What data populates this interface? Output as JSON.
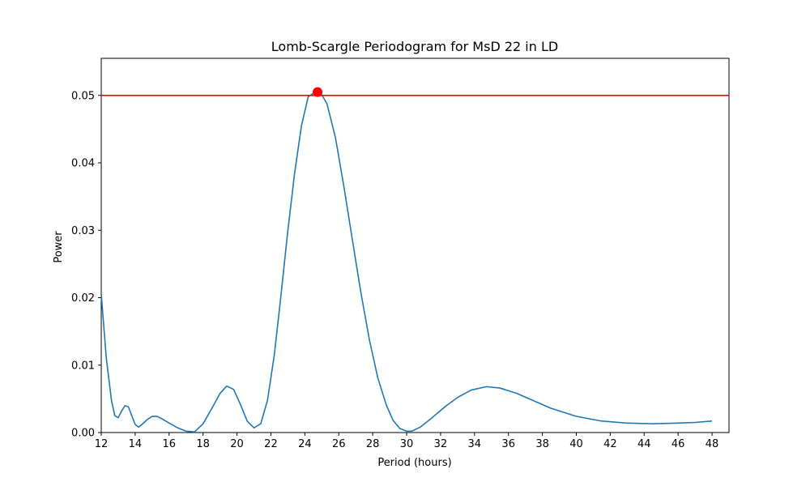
{
  "chart_data": {
    "type": "line",
    "title": "Lomb-Scargle Periodogram for MsD 22 in LD",
    "xlabel": "Period (hours)",
    "ylabel": "Power",
    "xlim": [
      12,
      49
    ],
    "ylim": [
      0,
      0.0555
    ],
    "xticks": [
      12,
      14,
      16,
      18,
      20,
      22,
      24,
      26,
      28,
      30,
      32,
      34,
      36,
      38,
      40,
      42,
      44,
      46,
      48
    ],
    "yticks": [
      0.0,
      0.01,
      0.02,
      0.03,
      0.04,
      0.05
    ],
    "ytick_labels": [
      "0.00",
      "0.01",
      "0.02",
      "0.03",
      "0.04",
      "0.05"
    ],
    "grid": false,
    "series": [
      {
        "color": "#1f77b4",
        "x": [
          12.0,
          12.3,
          12.6,
          12.8,
          13.0,
          13.2,
          13.4,
          13.6,
          13.8,
          14.0,
          14.2,
          14.4,
          14.7,
          15.0,
          15.3,
          15.6,
          16.0,
          16.5,
          17.0,
          17.5,
          18.0,
          18.5,
          19.0,
          19.4,
          19.8,
          20.2,
          20.6,
          21.0,
          21.4,
          21.8,
          22.2,
          22.6,
          23.0,
          23.4,
          23.8,
          24.2,
          24.6,
          24.9,
          25.3,
          25.8,
          26.3,
          26.8,
          27.3,
          27.8,
          28.3,
          28.8,
          29.2,
          29.6,
          30.0,
          30.3,
          30.8,
          31.5,
          32.3,
          33.0,
          33.8,
          34.7,
          35.5,
          36.5,
          37.5,
          38.5,
          40.0,
          41.5,
          43.0,
          44.5,
          46.0,
          47.0,
          48.0
        ],
        "y": [
          0.0205,
          0.011,
          0.0048,
          0.0025,
          0.0022,
          0.0032,
          0.004,
          0.0038,
          0.0025,
          0.0012,
          0.0008,
          0.0012,
          0.0019,
          0.0024,
          0.0024,
          0.002,
          0.0014,
          0.0007,
          0.0002,
          0.0001,
          0.0013,
          0.0035,
          0.0058,
          0.0069,
          0.0064,
          0.0042,
          0.0017,
          0.0007,
          0.0013,
          0.0048,
          0.0115,
          0.0205,
          0.03,
          0.0385,
          0.0455,
          0.0498,
          0.0505,
          0.0505,
          0.0488,
          0.0438,
          0.0365,
          0.0286,
          0.0208,
          0.0138,
          0.0081,
          0.0041,
          0.0018,
          0.0006,
          0.0002,
          0.0002,
          0.0008,
          0.0022,
          0.0039,
          0.0052,
          0.0063,
          0.0068,
          0.0066,
          0.0058,
          0.0047,
          0.0036,
          0.0024,
          0.0017,
          0.0014,
          0.0013,
          0.0014,
          0.0015,
          0.0017
        ]
      }
    ],
    "threshold_line": {
      "y": 0.05,
      "color": "#ff0000"
    },
    "peak_marker": {
      "x": 24.75,
      "y": 0.0505,
      "color": "#ff0000"
    }
  }
}
